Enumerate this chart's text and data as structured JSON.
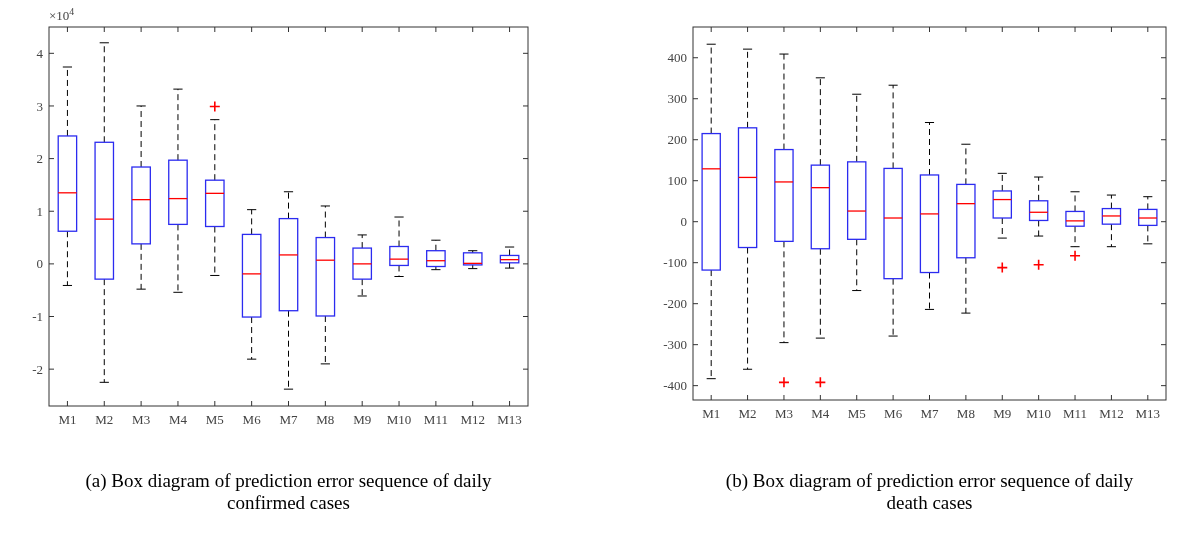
{
  "chart_data": [
    {
      "type": "box",
      "title": "(a) Box diagram of prediction error sequence of daily confirmed cases",
      "annotations": [
        "×10$^{4}$"
      ],
      "categories": [
        "M1",
        "M2",
        "M3",
        "M4",
        "M5",
        "M6",
        "M7",
        "M8",
        "M9",
        "M10",
        "M11",
        "M12",
        "M13"
      ],
      "ylim": [
        -2.7,
        4.5
      ],
      "yticks": [
        -2,
        -1,
        0,
        1,
        2,
        3,
        4
      ],
      "grid": false,
      "marker": "cross",
      "series": [
        {
          "color": "#2b2bf0",
          "boxes": [
            {
              "low": -0.41,
              "q1": 0.62,
              "median": 1.35,
              "q3": 2.43,
              "high": 3.74
            },
            {
              "low": -2.25,
              "q1": -0.29,
              "median": 0.85,
              "q3": 2.31,
              "high": 4.2
            },
            {
              "low": -0.48,
              "q1": 0.38,
              "median": 1.22,
              "q3": 1.84,
              "high": 3.0
            },
            {
              "low": -0.54,
              "q1": 0.75,
              "median": 1.24,
              "q3": 1.97,
              "high": 3.32
            },
            {
              "low": -0.22,
              "q1": 0.71,
              "median": 1.34,
              "q3": 1.59,
              "high": 2.74,
              "outliers": [
                2.99
              ]
            },
            {
              "low": -1.81,
              "q1": -1.01,
              "median": -0.19,
              "q3": 0.56,
              "high": 1.03
            },
            {
              "low": -2.38,
              "q1": -0.89,
              "median": 0.17,
              "q3": 0.86,
              "high": 1.37
            },
            {
              "low": -1.9,
              "q1": -0.99,
              "median": 0.07,
              "q3": 0.5,
              "high": 1.1
            },
            {
              "low": -0.61,
              "q1": -0.29,
              "median": 0.0,
              "q3": 0.3,
              "high": 0.55
            },
            {
              "low": -0.24,
              "q1": -0.03,
              "median": 0.09,
              "q3": 0.33,
              "high": 0.89
            },
            {
              "low": -0.11,
              "q1": -0.05,
              "median": 0.06,
              "q3": 0.25,
              "high": 0.45
            },
            {
              "low": -0.09,
              "q1": -0.02,
              "median": 0.01,
              "q3": 0.21,
              "high": 0.25
            },
            {
              "low": -0.08,
              "q1": 0.02,
              "median": 0.08,
              "q3": 0.16,
              "high": 0.32
            }
          ]
        }
      ]
    },
    {
      "type": "box",
      "title": "(b) Box diagram of prediction error sequence of daily death cases",
      "categories": [
        "M1",
        "M2",
        "M3",
        "M4",
        "M5",
        "M6",
        "M7",
        "M8",
        "M9",
        "M10",
        "M11",
        "M12",
        "M13"
      ],
      "ylim": [
        -435,
        475
      ],
      "yticks": [
        -400,
        -300,
        -200,
        -100,
        0,
        100,
        200,
        300,
        400
      ],
      "grid": false,
      "marker": "cross",
      "series": [
        {
          "color": "#2b2bf0",
          "boxes": [
            {
              "low": -383,
              "q1": -118,
              "median": 129,
              "q3": 215,
              "high": 433
            },
            {
              "low": -360,
              "q1": -63,
              "median": 108,
              "q3": 229,
              "high": 421
            },
            {
              "low": -295,
              "q1": -48,
              "median": 97,
              "q3": 176,
              "high": 409,
              "outliers": [
                -392
              ]
            },
            {
              "low": -284,
              "q1": -66,
              "median": 83,
              "q3": 138,
              "high": 351,
              "outliers": [
                -392
              ]
            },
            {
              "low": -168,
              "q1": -43,
              "median": 26,
              "q3": 146,
              "high": 311
            },
            {
              "low": -279,
              "q1": -139,
              "median": 9,
              "q3": 130,
              "high": 333
            },
            {
              "low": -214,
              "q1": -124,
              "median": 19,
              "q3": 114,
              "high": 242
            },
            {
              "low": -223,
              "q1": -88,
              "median": 44,
              "q3": 91,
              "high": 189
            },
            {
              "low": -40,
              "q1": 9,
              "median": 54,
              "q3": 75,
              "high": 118,
              "outliers": [
                -112
              ]
            },
            {
              "low": -35,
              "q1": 3,
              "median": 23,
              "q3": 51,
              "high": 109,
              "outliers": [
                -105
              ]
            },
            {
              "low": -61,
              "q1": -11,
              "median": 2,
              "q3": 25,
              "high": 73,
              "outliers": [
                -83
              ]
            },
            {
              "low": -61,
              "q1": -6,
              "median": 14,
              "q3": 32,
              "high": 65
            },
            {
              "low": -54,
              "q1": -9,
              "median": 9,
              "q3": 30,
              "high": 61
            }
          ]
        }
      ]
    }
  ]
}
